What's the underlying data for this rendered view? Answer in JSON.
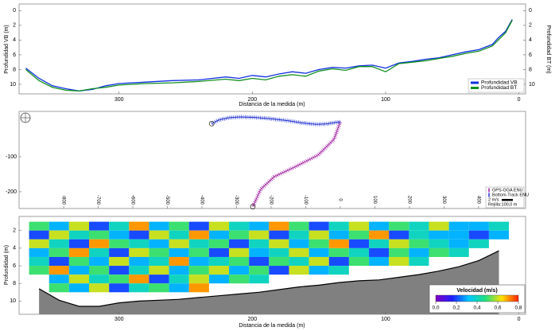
{
  "chart_data": [
    {
      "type": "line",
      "x_label": "Distancia de la medida (m)",
      "y_label": "Profundidad VB (m)",
      "y2_label": "Profundidad BT (m)",
      "x": [
        370,
        360,
        350,
        340,
        330,
        320,
        310,
        300,
        280,
        260,
        240,
        220,
        210,
        200,
        190,
        180,
        170,
        160,
        150,
        140,
        130,
        120,
        110,
        100,
        90,
        80,
        70,
        60,
        50,
        40,
        30,
        20,
        15,
        10,
        5
      ],
      "series": [
        {
          "name": "Profundidad VB",
          "color": "#1030e0",
          "values": [
            7.8,
            9.2,
            10.2,
            10.6,
            10.9,
            10.7,
            10.2,
            9.9,
            9.7,
            9.5,
            9.4,
            9.0,
            9.2,
            8.8,
            9.0,
            8.6,
            8.3,
            8.5,
            8.0,
            7.7,
            7.8,
            7.5,
            7.4,
            7.8,
            7.1,
            6.9,
            6.6,
            6.4,
            6.0,
            5.6,
            5.3,
            4.6,
            3.6,
            2.8,
            1.2
          ]
        },
        {
          "name": "Profundidad BT",
          "color": "#109020",
          "axis": "y2",
          "values": [
            8.0,
            9.5,
            10.4,
            10.8,
            10.9,
            10.6,
            10.4,
            10.1,
            9.9,
            9.8,
            9.6,
            9.3,
            9.5,
            9.2,
            9.4,
            8.9,
            8.7,
            8.9,
            8.2,
            7.9,
            8.1,
            7.6,
            7.6,
            8.3,
            7.2,
            7.0,
            6.8,
            6.5,
            6.2,
            5.8,
            5.5,
            4.8,
            3.9,
            3.0,
            1.3
          ]
        }
      ],
      "xlim": [
        375,
        -5
      ],
      "xticks": [
        300,
        200,
        100,
        0
      ],
      "ylim": [
        11.3,
        -0.9
      ],
      "yticks": [
        0,
        2,
        4,
        6,
        8,
        10
      ],
      "y2lim": [
        11.3,
        -0.9
      ],
      "y2ticks": [
        0,
        2,
        4,
        6,
        8,
        10
      ],
      "legend": "lower right"
    },
    {
      "type": "track",
      "series": [
        {
          "name": "GPS-GGA ENU",
          "color": "#a020a0",
          "x": [
            0,
            -18,
            -64,
            -133,
            -191,
            -230,
            -253
          ],
          "y": [
            0,
            -50,
            -95,
            -130,
            -157,
            -193,
            -243
          ]
        },
        {
          "name": "Bottom-Track ENU",
          "color": "#2030d0",
          "x": [
            -372,
            -350,
            -320,
            -290,
            -250,
            -200,
            -150,
            -110,
            -70,
            -40,
            -15,
            0
          ],
          "y": [
            -5,
            6,
            12,
            14,
            13,
            9,
            3,
            -3,
            -7,
            -6,
            -2,
            0
          ]
        }
      ],
      "scale_label": "2 m/s",
      "grid_label": "Rejilla:100,0 m",
      "xlim": [
        -929,
        536
      ],
      "xticks": [
        -800,
        -700,
        -600,
        -500,
        -400,
        -300,
        -200,
        -100,
        0,
        100,
        200,
        300,
        400
      ],
      "ylim": [
        -248,
        30
      ],
      "yticks": [
        -100,
        -200
      ],
      "legend": "lower right"
    },
    {
      "type": "heatmap",
      "x_label": "Distancia de la medida (m)",
      "y_label": "Profundidad (m)",
      "colorbar_label": "Velocidad (m/s)",
      "x": [
        360,
        345,
        330,
        315,
        300,
        285,
        270,
        255,
        240,
        225,
        210,
        195,
        180,
        165,
        150,
        135,
        120,
        105,
        90,
        75,
        60,
        45,
        30,
        15
      ],
      "y": [
        1.5,
        2.5,
        3.5,
        4.5,
        5.5,
        6.5,
        7.5,
        8.5
      ],
      "z": [
        [
          0.5,
          0.3,
          0.6,
          0.2,
          0.4,
          0.7,
          0.3,
          0.5,
          0.2,
          0.6,
          0.4,
          0.3,
          0.7,
          0.5,
          0.2,
          0.4,
          0.6,
          0.3,
          0.5,
          0.4,
          0.6,
          0.3,
          0.3,
          0.4
        ],
        [
          0.2,
          0.6,
          0.4,
          0.5,
          0.3,
          0.2,
          0.6,
          0.4,
          0.7,
          0.3,
          0.5,
          0.6,
          0.2,
          0.4,
          0.6,
          0.3,
          0.5,
          0.7,
          0.2,
          0.4,
          0.3,
          0.3,
          0.2,
          0.3
        ],
        [
          0.6,
          0.4,
          0.2,
          0.7,
          0.5,
          0.4,
          0.3,
          0.6,
          0.4,
          0.5,
          0.2,
          0.4,
          0.6,
          0.3,
          0.5,
          0.7,
          0.2,
          0.4,
          0.6,
          0.5,
          0.4,
          0.3,
          0.4,
          null
        ],
        [
          0.3,
          0.5,
          0.7,
          0.4,
          0.2,
          0.6,
          0.5,
          0.3,
          0.5,
          0.2,
          0.6,
          0.3,
          0.4,
          0.6,
          0.3,
          0.5,
          0.4,
          0.2,
          0.5,
          0.3,
          0.5,
          0.4,
          null,
          null
        ],
        [
          0.4,
          0.2,
          0.5,
          0.3,
          0.6,
          0.3,
          0.4,
          0.7,
          0.3,
          0.4,
          0.5,
          0.2,
          0.5,
          0.4,
          0.6,
          0.2,
          0.5,
          0.3,
          0.6,
          0.4,
          null,
          null,
          null,
          null
        ],
        [
          0.5,
          0.7,
          0.3,
          0.5,
          0.2,
          0.4,
          0.6,
          0.3,
          0.5,
          0.6,
          0.3,
          0.5,
          0.2,
          0.6,
          0.3,
          0.4,
          null,
          null,
          null,
          null,
          null,
          null,
          null,
          null
        ],
        [
          null,
          0.3,
          0.6,
          0.4,
          0.5,
          0.7,
          0.2,
          0.4,
          0.6,
          0.3,
          0.5,
          0.4,
          null,
          null,
          null,
          null,
          null,
          null,
          null,
          null,
          null,
          null,
          null,
          null
        ],
        [
          null,
          0.5,
          0.3,
          0.6,
          0.2,
          0.4,
          0.5,
          0.3,
          0.7,
          null,
          null,
          null,
          null,
          null,
          null,
          null,
          null,
          null,
          null,
          null,
          null,
          null,
          null,
          null
        ]
      ],
      "bottom": [
        8.6,
        9.9,
        10.6,
        10.6,
        10.2,
        10.0,
        9.9,
        9.8,
        9.6,
        9.4,
        9.2,
        9.0,
        8.7,
        8.4,
        8.2,
        7.9,
        7.7,
        7.6,
        7.3,
        7.0,
        6.6,
        6.1,
        5.4,
        4.3
      ],
      "colorscale": [
        "#8000c0",
        "#2020ff",
        "#00c8ff",
        "#20e080",
        "#ffe000",
        "#ff2000"
      ],
      "zlim": [
        0,
        0.8
      ],
      "zticks": [
        {
          "value": 0,
          "label": "0,0"
        },
        {
          "value": 0.2,
          "label": "0,2"
        },
        {
          "value": 0.4,
          "label": "0,4"
        },
        {
          "value": 0.6,
          "label": "0,6"
        },
        {
          "value": 0.8,
          "label": "0,8"
        }
      ],
      "xlim": [
        375,
        -5
      ],
      "xticks": [
        300,
        200,
        100,
        0
      ],
      "ylim": [
        11.5,
        0.4
      ],
      "yticks": [
        2,
        4,
        6,
        8,
        10
      ]
    }
  ]
}
